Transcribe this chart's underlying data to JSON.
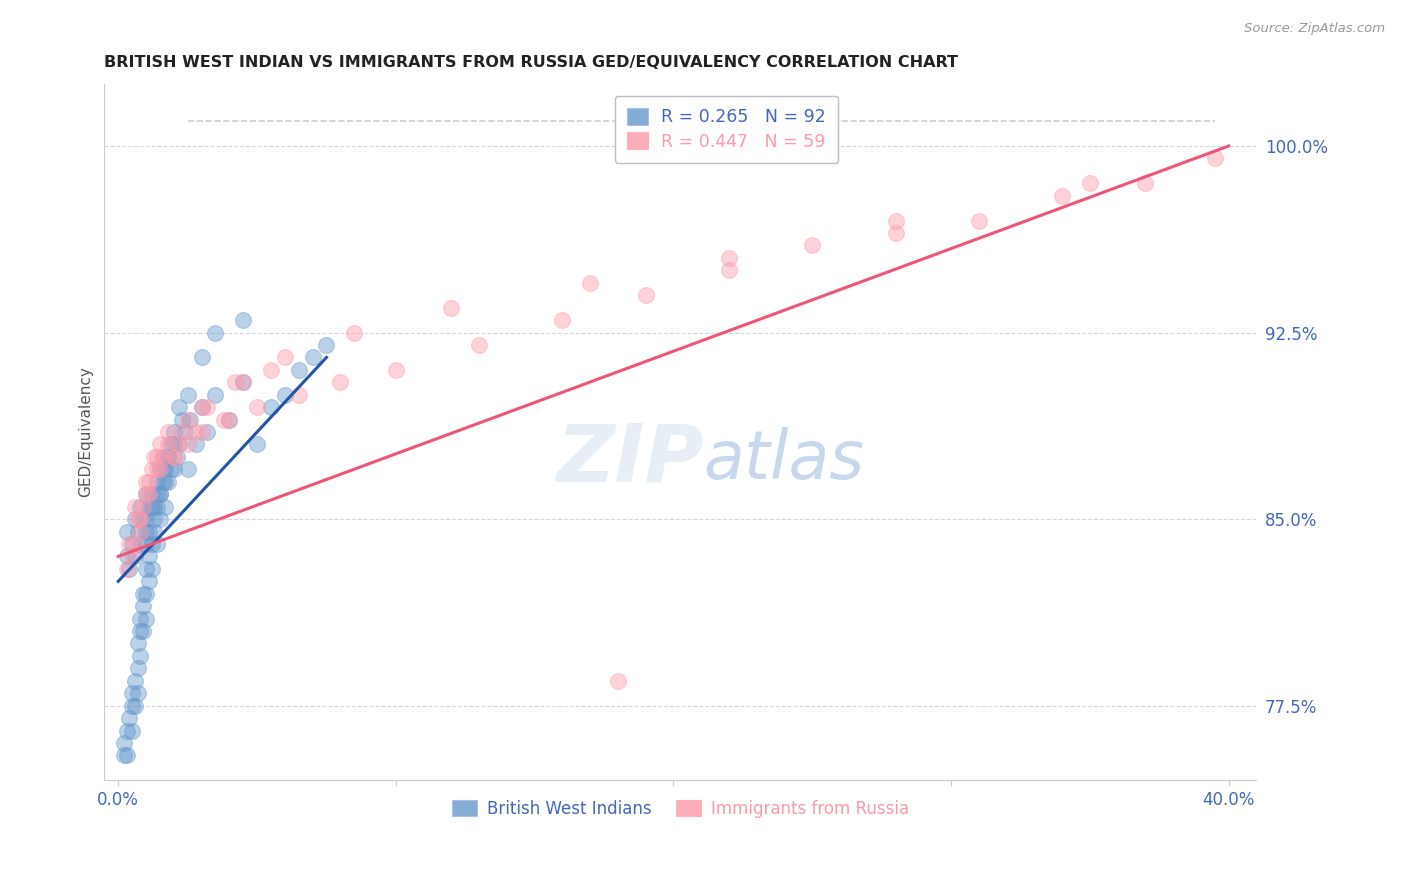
{
  "title": "BRITISH WEST INDIAN VS IMMIGRANTS FROM RUSSIA GED/EQUIVALENCY CORRELATION CHART",
  "source": "Source: ZipAtlas.com",
  "ylabel": "GED/Equivalency",
  "yticks": [
    77.5,
    85.0,
    92.5,
    100.0
  ],
  "ytick_labels": [
    "77.5%",
    "85.0%",
    "92.5%",
    "100.0%"
  ],
  "xlim": [
    -0.5,
    41.0
  ],
  "ylim": [
    74.5,
    102.5
  ],
  "legend_r1": "R = 0.265",
  "legend_n1": "N = 92",
  "legend_r2": "R = 0.447",
  "legend_n2": "N = 59",
  "legend_label1": "British West Indians",
  "legend_label2": "Immigrants from Russia",
  "blue_color": "#6699CC",
  "pink_color": "#FF99AA",
  "blue_line_color": "#2255AA",
  "pink_line_color": "#EE5577",
  "axis_color": "#4466BB",
  "grid_color": "#CCCCDD",
  "blue_x": [
    0.2,
    0.2,
    0.3,
    0.3,
    0.4,
    0.5,
    0.5,
    0.5,
    0.6,
    0.6,
    0.7,
    0.7,
    0.7,
    0.8,
    0.8,
    0.8,
    0.9,
    0.9,
    0.9,
    1.0,
    1.0,
    1.0,
    1.0,
    1.0,
    1.1,
    1.1,
    1.1,
    1.2,
    1.2,
    1.2,
    1.3,
    1.3,
    1.4,
    1.4,
    1.4,
    1.5,
    1.5,
    1.5,
    1.6,
    1.6,
    1.7,
    1.7,
    1.8,
    1.8,
    1.9,
    2.0,
    2.0,
    2.1,
    2.2,
    2.3,
    2.4,
    2.5,
    2.6,
    2.8,
    3.0,
    3.2,
    3.5,
    4.0,
    4.5,
    5.0,
    5.5,
    6.0,
    6.5,
    7.0,
    7.5,
    0.3,
    0.3,
    0.4,
    0.5,
    0.6,
    0.6,
    0.7,
    0.8,
    0.8,
    0.9,
    1.0,
    1.0,
    1.1,
    1.2,
    1.3,
    1.4,
    1.5,
    1.6,
    1.7,
    1.8,
    1.9,
    2.0,
    2.2,
    2.5,
    3.0,
    3.5,
    4.5
  ],
  "blue_y": [
    75.5,
    76.0,
    75.5,
    76.5,
    77.0,
    76.5,
    77.5,
    78.0,
    77.5,
    78.5,
    78.0,
    79.0,
    80.0,
    79.5,
    80.5,
    81.0,
    80.5,
    81.5,
    82.0,
    81.0,
    82.0,
    83.0,
    84.0,
    85.0,
    82.5,
    83.5,
    84.5,
    83.0,
    84.0,
    85.5,
    84.5,
    85.0,
    84.0,
    85.5,
    86.0,
    85.0,
    86.0,
    87.0,
    86.5,
    87.5,
    85.5,
    87.0,
    86.5,
    87.5,
    88.0,
    87.0,
    88.5,
    87.5,
    88.0,
    89.0,
    88.5,
    87.0,
    89.0,
    88.0,
    89.5,
    88.5,
    90.0,
    89.0,
    90.5,
    88.0,
    89.5,
    90.0,
    91.0,
    91.5,
    92.0,
    83.5,
    84.5,
    83.0,
    84.0,
    83.5,
    85.0,
    84.5,
    84.0,
    85.5,
    85.0,
    84.5,
    86.0,
    85.5,
    86.0,
    85.5,
    86.5,
    86.0,
    87.0,
    86.5,
    87.5,
    87.0,
    88.0,
    89.5,
    90.0,
    91.5,
    92.5,
    93.0
  ],
  "pink_x": [
    0.5,
    0.6,
    0.8,
    0.8,
    0.9,
    1.0,
    1.1,
    1.2,
    1.3,
    1.4,
    1.5,
    1.6,
    1.8,
    2.0,
    2.2,
    2.5,
    2.8,
    3.2,
    3.8,
    4.5,
    5.5,
    0.4,
    0.7,
    1.1,
    1.5,
    2.0,
    2.5,
    3.0,
    4.0,
    5.0,
    6.5,
    8.0,
    10.0,
    13.0,
    16.0,
    19.0,
    22.0,
    25.0,
    28.0,
    31.0,
    34.0,
    37.0,
    39.5,
    0.3,
    0.6,
    1.0,
    1.4,
    1.8,
    2.3,
    3.0,
    4.2,
    6.0,
    8.5,
    12.0,
    17.0,
    22.0,
    28.0,
    35.0,
    18.0
  ],
  "pink_y": [
    83.5,
    84.0,
    85.0,
    84.5,
    85.5,
    86.0,
    86.5,
    87.0,
    87.5,
    87.0,
    88.0,
    87.5,
    88.5,
    87.5,
    88.0,
    89.0,
    88.5,
    89.5,
    89.0,
    90.5,
    91.0,
    84.0,
    85.0,
    86.0,
    87.0,
    87.5,
    88.0,
    88.5,
    89.0,
    89.5,
    90.0,
    90.5,
    91.0,
    92.0,
    93.0,
    94.0,
    95.0,
    96.0,
    96.5,
    97.0,
    98.0,
    98.5,
    99.5,
    83.0,
    85.5,
    86.5,
    87.5,
    88.0,
    88.5,
    89.5,
    90.5,
    91.5,
    92.5,
    93.5,
    94.5,
    95.5,
    97.0,
    98.5,
    78.5
  ],
  "blue_trend": [
    0.0,
    7.5,
    82.5,
    91.5
  ],
  "pink_trend": [
    0.0,
    40.0,
    83.5,
    100.0
  ],
  "dashed_trend": [
    2.5,
    39.5,
    101.0,
    101.0
  ]
}
